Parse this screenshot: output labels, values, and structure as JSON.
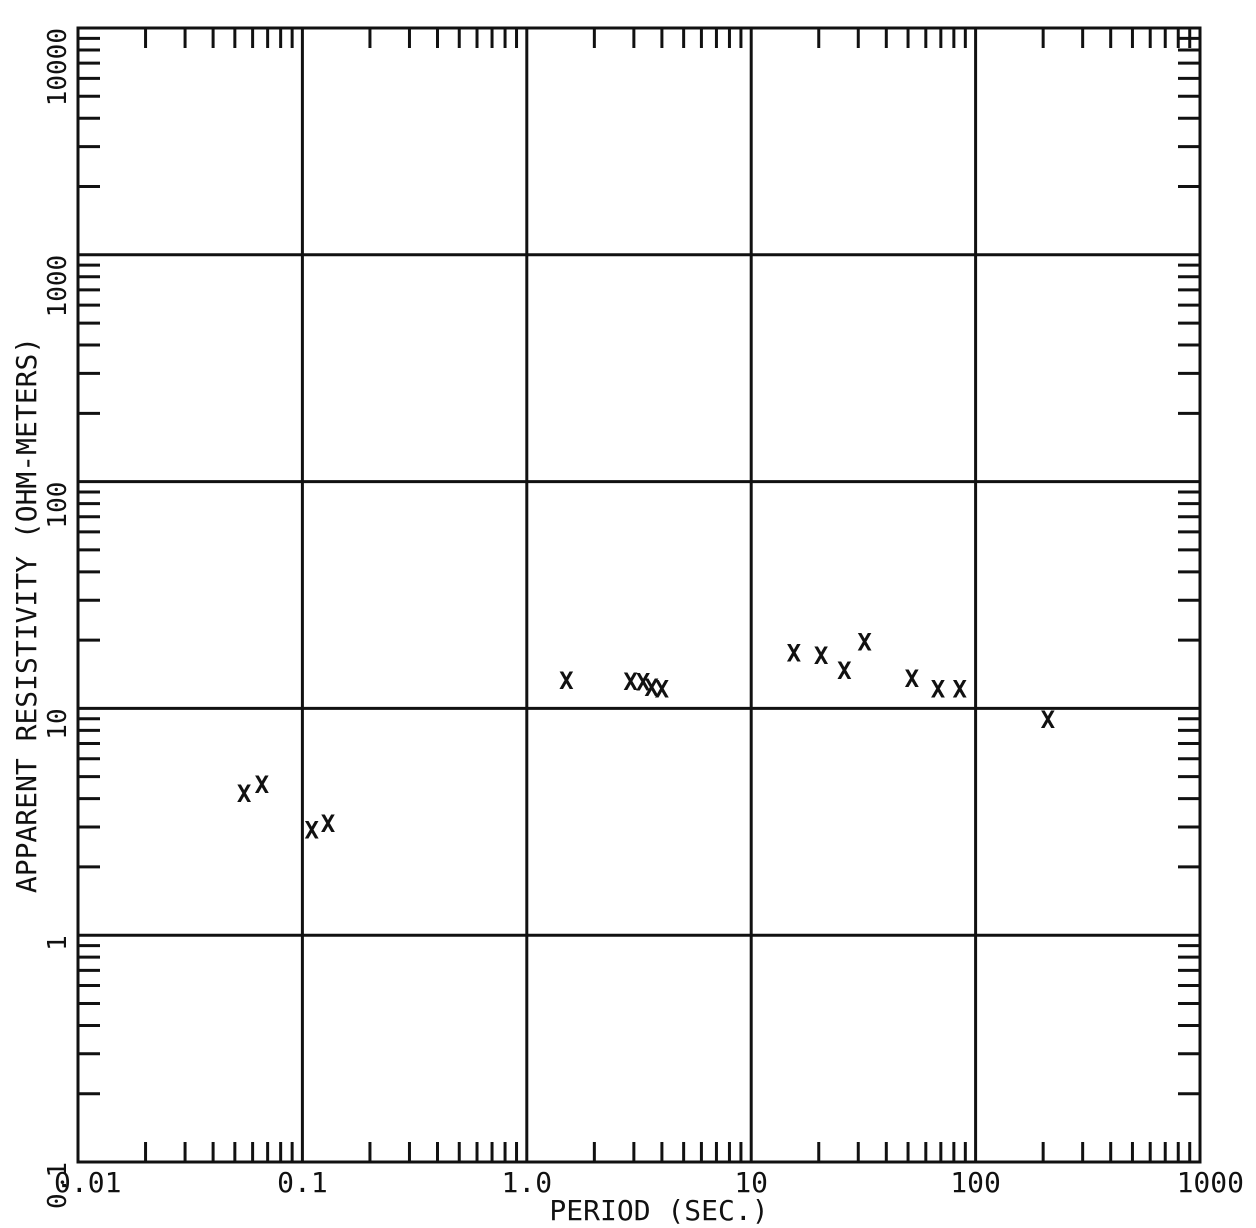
{
  "chart_data": {
    "type": "scatter",
    "title": "",
    "xlabel": "PERIOD (SEC.)",
    "ylabel": "APPARENT RESISTIVITY (OHM-METERS)",
    "x_scale": "log",
    "y_scale": "log",
    "xlim": [
      0.01,
      1000
    ],
    "ylim": [
      0.1,
      10000
    ],
    "grid": true,
    "marker": "X",
    "x_tick_labels": [
      "0.01",
      "0.1",
      "1.0",
      "10",
      "100",
      "1000"
    ],
    "y_tick_labels": [
      "0.1",
      "1",
      "10",
      "100",
      "1000",
      "10000"
    ],
    "points": [
      {
        "x": 0.055,
        "y": 4.2
      },
      {
        "x": 0.066,
        "y": 4.6
      },
      {
        "x": 0.11,
        "y": 2.9
      },
      {
        "x": 0.13,
        "y": 3.1
      },
      {
        "x": 1.5,
        "y": 13.2
      },
      {
        "x": 2.9,
        "y": 13.1
      },
      {
        "x": 3.3,
        "y": 13.0
      },
      {
        "x": 3.6,
        "y": 12.3
      },
      {
        "x": 4.0,
        "y": 12.1
      },
      {
        "x": 15.5,
        "y": 17.5
      },
      {
        "x": 20.5,
        "y": 17.0
      },
      {
        "x": 26,
        "y": 14.6
      },
      {
        "x": 32,
        "y": 19.5
      },
      {
        "x": 52,
        "y": 13.5
      },
      {
        "x": 68,
        "y": 12.1
      },
      {
        "x": 85,
        "y": 12.1
      },
      {
        "x": 210,
        "y": 8.9
      }
    ]
  }
}
